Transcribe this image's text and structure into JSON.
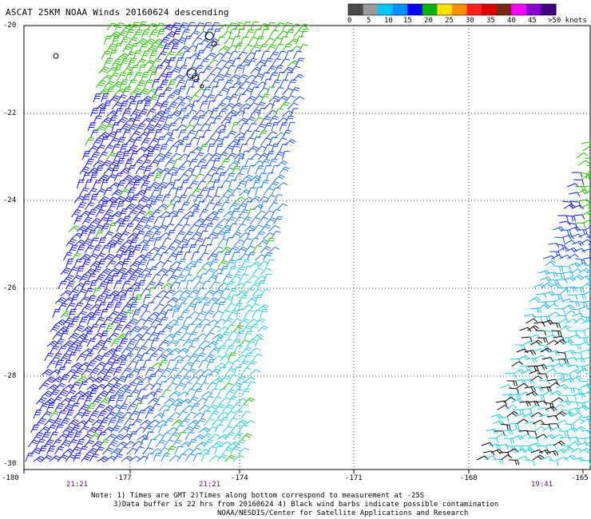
{
  "title": "ASCAT 25KM NOAA Winds 20160624 descending",
  "colorbar": {
    "labels": [
      "0",
      "5",
      "10",
      "15",
      "20",
      "25",
      "30",
      "35",
      "40",
      "45",
      ">50 knots"
    ],
    "colors": [
      "#4a4a4a",
      "#9a9a9a",
      "#00c8ff",
      "#0090ff",
      "#0000ff",
      "#00b400",
      "#ffe000",
      "#ff9000",
      "#ff2020",
      "#e00000",
      "#7a2a10",
      "#ff00ff",
      "#8a00d0",
      "#400080"
    ]
  },
  "axes": {
    "x_ticks": [
      "-180",
      "-177",
      "-174",
      "-171",
      "-168",
      "-165"
    ],
    "y_ticks": [
      "-20",
      "-22",
      "-24",
      "-26",
      "-28",
      "-30"
    ],
    "x_range": [
      -180,
      -165
    ],
    "y_range": [
      -30,
      -20
    ]
  },
  "pass_times": [
    "21:21",
    "21:21",
    "19:41"
  ],
  "notes": {
    "line1": "Note: 1) Times are GMT 2)Times along bottom correspond to measurement at -25S",
    "line2": "3)Data buffer is 22 hrs from 20160624 4) Black wind barbs indicate possible contamination",
    "line3": "NOAA/NESDIS/Center for Satellite Applications and Research"
  }
}
